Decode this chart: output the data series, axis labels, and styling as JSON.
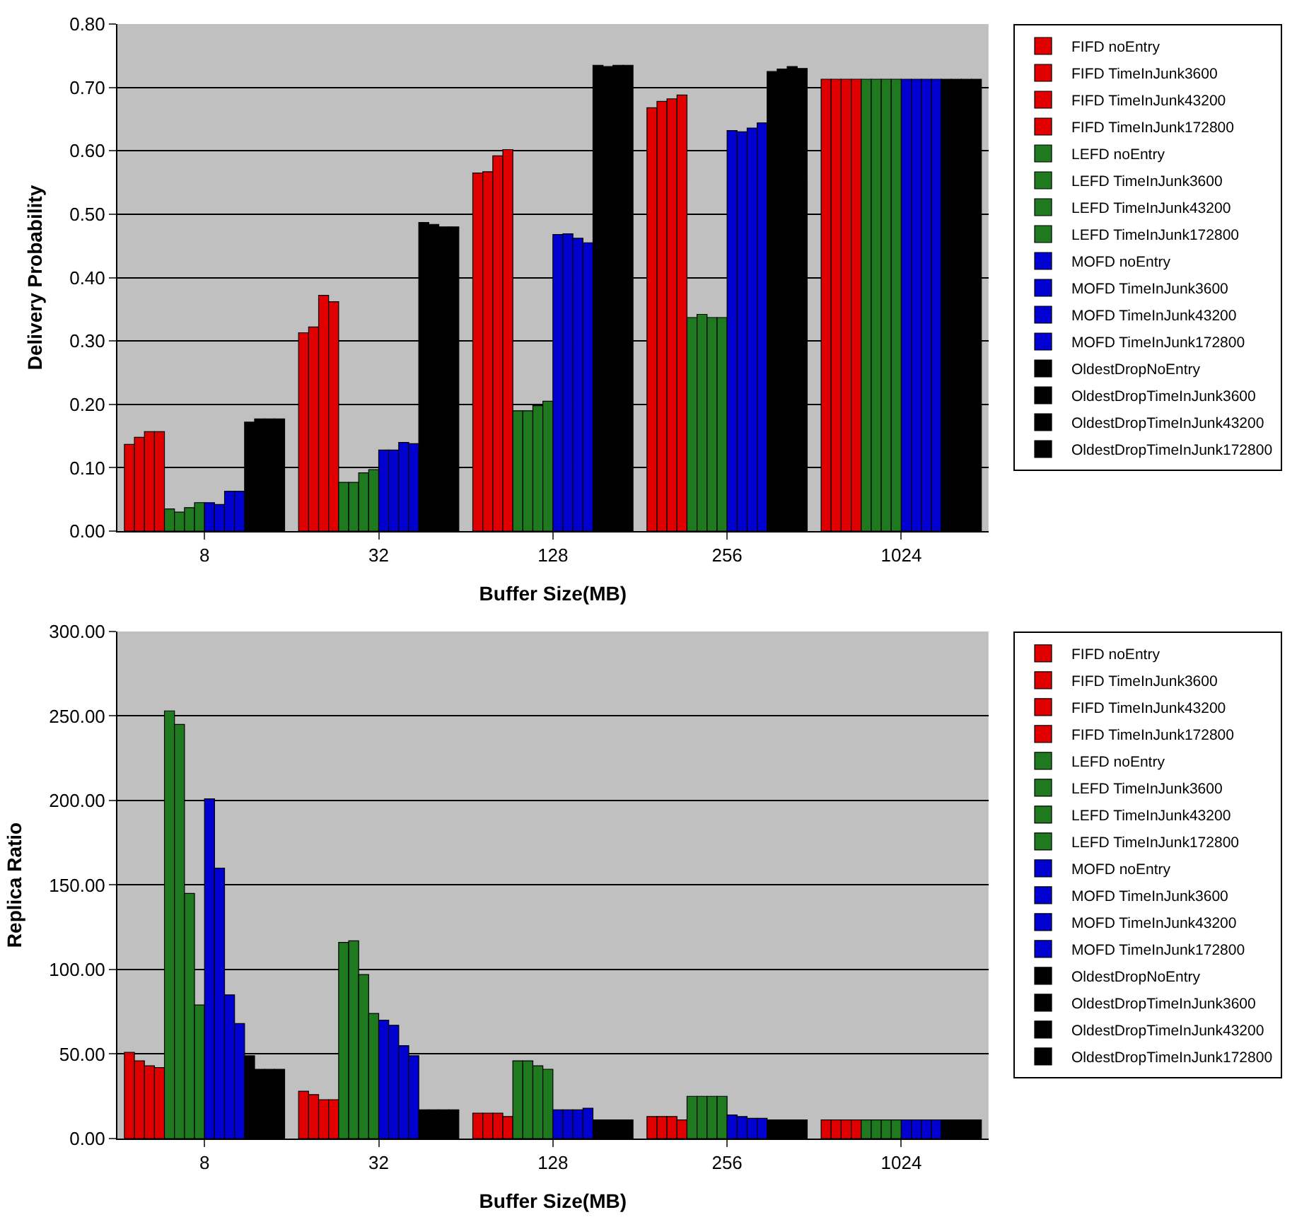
{
  "chart_data": [
    {
      "type": "bar",
      "xlabel": "Buffer Size(MB)",
      "ylabel": "Delivery Probability",
      "categories": [
        "8",
        "32",
        "128",
        "256",
        "1024"
      ],
      "ylim": [
        0,
        0.8
      ],
      "yticks": [
        {
          "value": 0,
          "label": "0.00"
        },
        {
          "value": 0.1,
          "label": "0.10"
        },
        {
          "value": 0.2,
          "label": "0.20"
        },
        {
          "value": 0.3,
          "label": "0.30"
        },
        {
          "value": 0.4,
          "label": "0.40"
        },
        {
          "value": 0.5,
          "label": "0.50"
        },
        {
          "value": 0.6,
          "label": "0.60"
        },
        {
          "value": 0.7,
          "label": "0.70"
        },
        {
          "value": 0.8,
          "label": "0.80"
        }
      ],
      "grid": "y",
      "legend": "right",
      "series": [
        {
          "name": "FIFD noEntry",
          "color": "#e00000",
          "values": [
            0.137,
            0.313,
            0.565,
            0.668,
            0.713
          ]
        },
        {
          "name": "FIFD TimeInJunk3600",
          "color": "#e00000",
          "values": [
            0.148,
            0.322,
            0.567,
            0.678,
            0.713
          ]
        },
        {
          "name": "FIFD TimeInJunk43200",
          "color": "#e00000",
          "values": [
            0.157,
            0.372,
            0.592,
            0.682,
            0.713
          ]
        },
        {
          "name": "FIFD TimeInJunk172800",
          "color": "#e00000",
          "values": [
            0.157,
            0.362,
            0.602,
            0.688,
            0.713
          ]
        },
        {
          "name": "LEFD noEntry",
          "color": "#1f7a1f",
          "values": [
            0.035,
            0.077,
            0.19,
            0.337,
            0.713
          ]
        },
        {
          "name": "LEFD TimeInJunk3600",
          "color": "#1f7a1f",
          "values": [
            0.03,
            0.077,
            0.19,
            0.342,
            0.713
          ]
        },
        {
          "name": "LEFD TimeInJunk43200",
          "color": "#1f7a1f",
          "values": [
            0.037,
            0.092,
            0.198,
            0.337,
            0.713
          ]
        },
        {
          "name": "LEFD TimeInJunk172800",
          "color": "#1f7a1f",
          "values": [
            0.045,
            0.097,
            0.205,
            0.337,
            0.713
          ]
        },
        {
          "name": "MOFD noEntry",
          "color": "#0000d0",
          "values": [
            0.045,
            0.128,
            0.468,
            0.632,
            0.713
          ]
        },
        {
          "name": "MOFD TimeInJunk3600",
          "color": "#0000d0",
          "values": [
            0.042,
            0.128,
            0.469,
            0.63,
            0.713
          ]
        },
        {
          "name": "MOFD TimeInJunk43200",
          "color": "#0000d0",
          "values": [
            0.063,
            0.14,
            0.462,
            0.636,
            0.713
          ]
        },
        {
          "name": "MOFD TimeInJunk172800",
          "color": "#0000d0",
          "values": [
            0.063,
            0.138,
            0.455,
            0.644,
            0.713
          ]
        },
        {
          "name": "OldestDropNoEntry",
          "color": "#000000",
          "values": [
            0.172,
            0.487,
            0.735,
            0.725,
            0.713
          ]
        },
        {
          "name": "OldestDropTimeInJunk3600",
          "color": "#000000",
          "values": [
            0.177,
            0.484,
            0.733,
            0.729,
            0.713
          ]
        },
        {
          "name": "OldestDropTimeInJunk43200",
          "color": "#000000",
          "values": [
            0.177,
            0.48,
            0.735,
            0.733,
            0.713
          ]
        },
        {
          "name": "OldestDropTimeInJunk172800",
          "color": "#000000",
          "values": [
            0.177,
            0.48,
            0.735,
            0.73,
            0.713
          ]
        }
      ]
    },
    {
      "type": "bar",
      "xlabel": "Buffer Size(MB)",
      "ylabel": "Replica Ratio",
      "categories": [
        "8",
        "32",
        "128",
        "256",
        "1024"
      ],
      "ylim": [
        0,
        300
      ],
      "yticks": [
        {
          "value": 0,
          "label": "0.00"
        },
        {
          "value": 50,
          "label": "50.00"
        },
        {
          "value": 100,
          "label": "100.00"
        },
        {
          "value": 150,
          "label": "150.00"
        },
        {
          "value": 200,
          "label": "200.00"
        },
        {
          "value": 250,
          "label": "250.00"
        },
        {
          "value": 300,
          "label": "300.00"
        }
      ],
      "grid": "y",
      "legend": "right",
      "series": [
        {
          "name": "FIFD noEntry",
          "color": "#e00000",
          "values": [
            51,
            28,
            15,
            13,
            11
          ]
        },
        {
          "name": "FIFD TimeInJunk3600",
          "color": "#e00000",
          "values": [
            46,
            26,
            15,
            13,
            11
          ]
        },
        {
          "name": "FIFD TimeInJunk43200",
          "color": "#e00000",
          "values": [
            43,
            23,
            15,
            13,
            11
          ]
        },
        {
          "name": "FIFD TimeInJunk172800",
          "color": "#e00000",
          "values": [
            42,
            23,
            13,
            11,
            11
          ]
        },
        {
          "name": "LEFD noEntry",
          "color": "#1f7a1f",
          "values": [
            253,
            116,
            46,
            25,
            11
          ]
        },
        {
          "name": "LEFD TimeInJunk3600",
          "color": "#1f7a1f",
          "values": [
            245,
            117,
            46,
            25,
            11
          ]
        },
        {
          "name": "LEFD TimeInJunk43200",
          "color": "#1f7a1f",
          "values": [
            145,
            97,
            43,
            25,
            11
          ]
        },
        {
          "name": "LEFD TimeInJunk172800",
          "color": "#1f7a1f",
          "values": [
            79,
            74,
            41,
            25,
            11
          ]
        },
        {
          "name": "MOFD noEntry",
          "color": "#0000d0",
          "values": [
            201,
            70,
            17,
            14,
            11
          ]
        },
        {
          "name": "MOFD TimeInJunk3600",
          "color": "#0000d0",
          "values": [
            160,
            67,
            17,
            13,
            11
          ]
        },
        {
          "name": "MOFD TimeInJunk43200",
          "color": "#0000d0",
          "values": [
            85,
            55,
            17,
            12,
            11
          ]
        },
        {
          "name": "MOFD TimeInJunk172800",
          "color": "#0000d0",
          "values": [
            68,
            49,
            18,
            12,
            11
          ]
        },
        {
          "name": "OldestDropNoEntry",
          "color": "#000000",
          "values": [
            49,
            17,
            11,
            11,
            11
          ]
        },
        {
          "name": "OldestDropTimeInJunk3600",
          "color": "#000000",
          "values": [
            41,
            17,
            11,
            11,
            11
          ]
        },
        {
          "name": "OldestDropTimeInJunk43200",
          "color": "#000000",
          "values": [
            41,
            17,
            11,
            11,
            11
          ]
        },
        {
          "name": "OldestDropTimeInJunk172800",
          "color": "#000000",
          "values": [
            41,
            17,
            11,
            11,
            11
          ]
        }
      ]
    }
  ]
}
